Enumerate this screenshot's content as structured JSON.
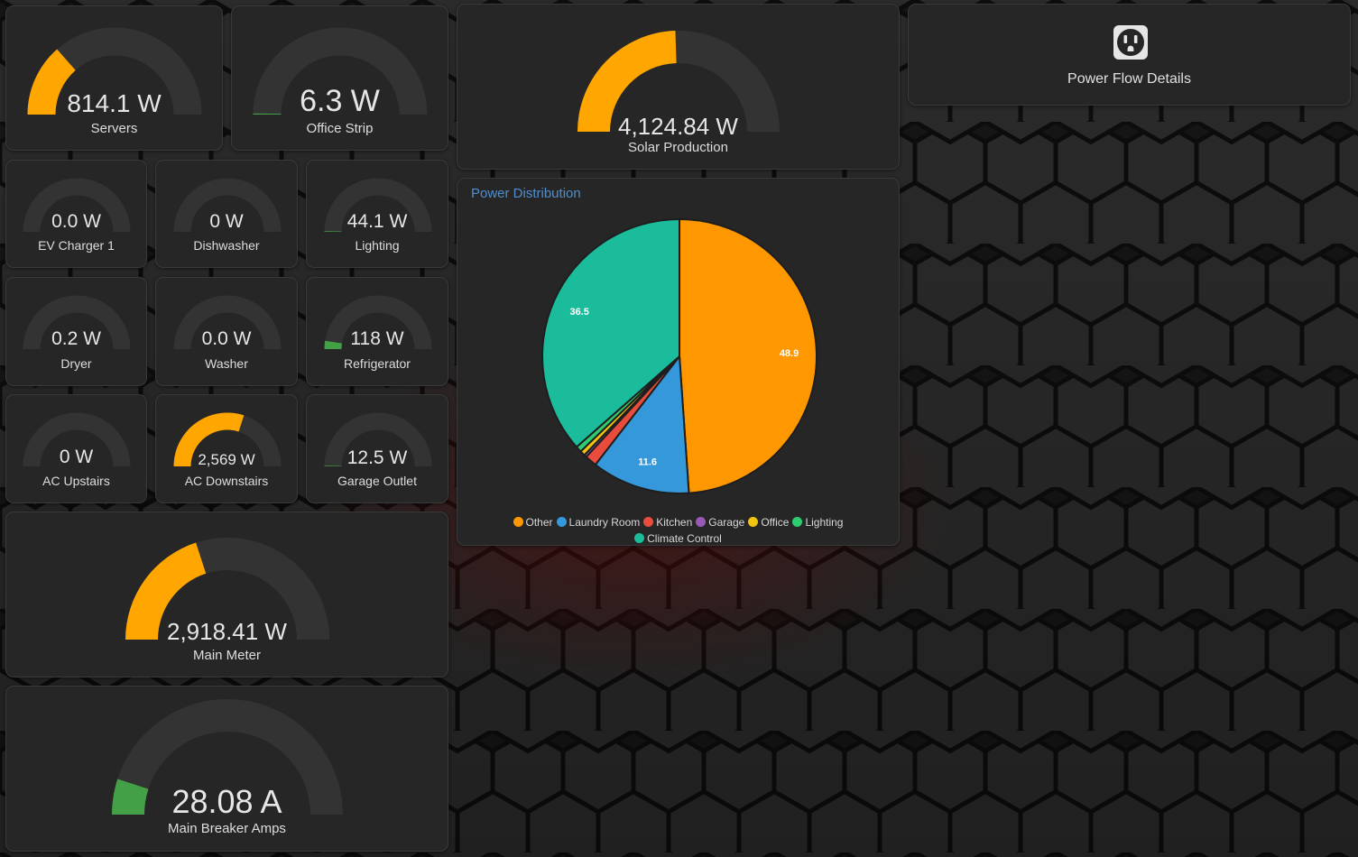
{
  "gauges": [
    {
      "id": "servers",
      "value": "814.1 W",
      "name": "Servers",
      "level": 0.27,
      "color": "#ffa600"
    },
    {
      "id": "office-strip",
      "value": "6.3 W",
      "name": "Office Strip",
      "level": 0.003,
      "color": "#43a047"
    },
    {
      "id": "ev-charger-1",
      "value": "0.0 W",
      "name": "EV Charger 1",
      "level": 0,
      "color": "#43a047"
    },
    {
      "id": "dishwasher",
      "value": "0 W",
      "name": "Dishwasher",
      "level": 0,
      "color": "#43a047"
    },
    {
      "id": "lighting",
      "value": "44.1 W",
      "name": "Lighting",
      "level": 0.004,
      "color": "#43a047"
    },
    {
      "id": "dryer",
      "value": "0.2 W",
      "name": "Dryer",
      "level": 0,
      "color": "#43a047"
    },
    {
      "id": "washer",
      "value": "0.0 W",
      "name": "Washer",
      "level": 0,
      "color": "#43a047"
    },
    {
      "id": "refrigerator",
      "value": "118 W",
      "name": "Refrigerator",
      "level": 0.05,
      "color": "#43a047"
    },
    {
      "id": "ac-upstairs",
      "value": "0 W",
      "name": "AC Upstairs",
      "level": 0,
      "color": "#43a047"
    },
    {
      "id": "ac-downstairs",
      "value": "2,569 W",
      "name": "AC Downstairs",
      "level": 0.6,
      "color": "#ffa600"
    },
    {
      "id": "garage-outlet",
      "value": "12.5 W",
      "name": "Garage Outlet",
      "level": 0.004,
      "color": "#43a047"
    },
    {
      "id": "solar-production",
      "value": "4,124.84 W",
      "name": "Solar Production",
      "level": 0.49,
      "color": "#ffa600"
    },
    {
      "id": "main-meter",
      "value": "2,918.41 W",
      "name": "Main Meter",
      "level": 0.4,
      "color": "#ffa600"
    },
    {
      "id": "main-breaker-amps",
      "value": "28.08 A",
      "name": "Main Breaker Amps",
      "level": 0.1,
      "color": "#43a047"
    }
  ],
  "power_flow": {
    "label": "Power Flow Details",
    "icon": "power-outlet-icon"
  },
  "chart_data": {
    "type": "pie",
    "title": "Power Distribution",
    "labels": [
      "Other",
      "Laundry Room",
      "Kitchen",
      "Garage",
      "Office",
      "Lighting",
      "Climate Control"
    ],
    "values": [
      48.9,
      11.6,
      1.4,
      0.3,
      0.6,
      0.7,
      36.5
    ],
    "value_labels": [
      "48.9",
      "11.6",
      "",
      "",
      "",
      "",
      "36.5"
    ],
    "colors": [
      "#ff9800",
      "#3498db",
      "#e74c3c",
      "#9b59b6",
      "#f1c40f",
      "#2ecc71",
      "#1abc9c"
    ],
    "legend": "bottom"
  }
}
